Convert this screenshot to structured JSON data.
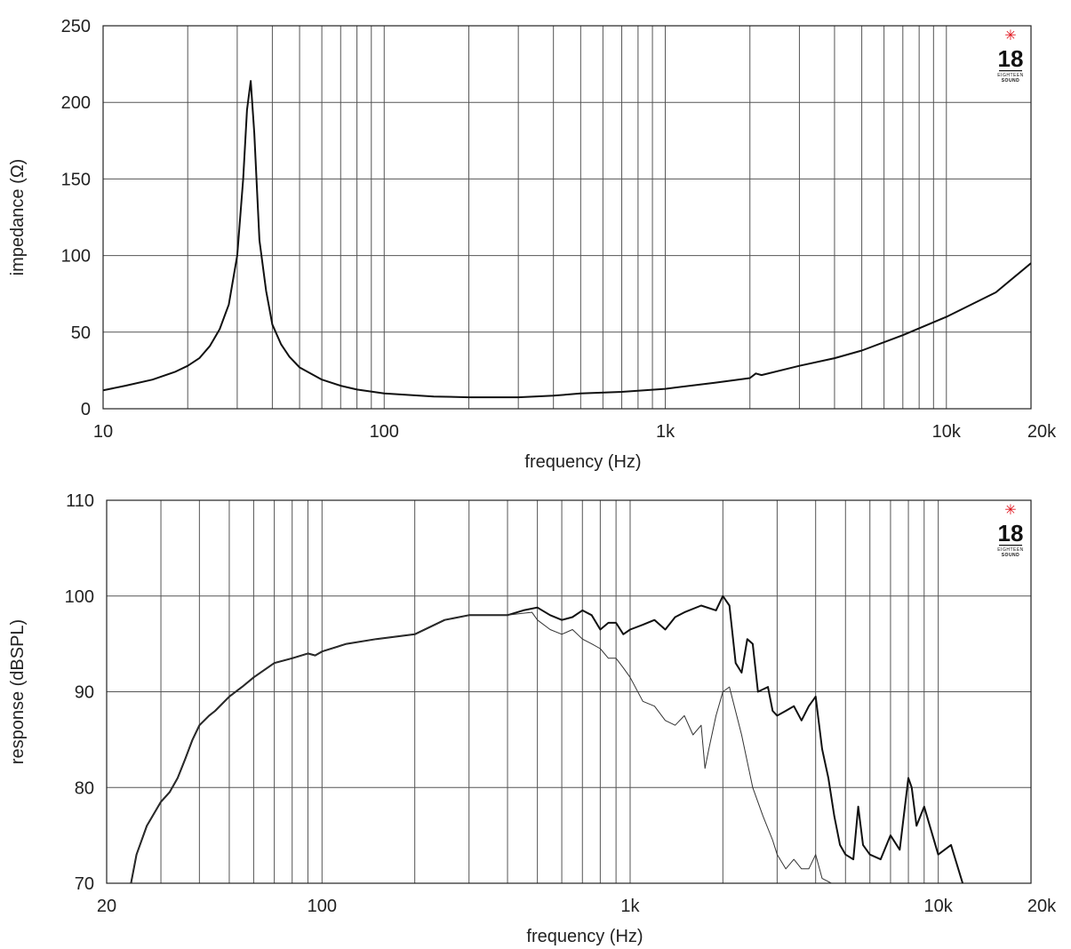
{
  "chart_data": [
    {
      "type": "line",
      "xscale": "log",
      "xlim": [
        10,
        20000
      ],
      "ylim": [
        0,
        250
      ],
      "xlabel": "frequency (Hz)",
      "ylabel": "impedance (Ω)",
      "xtick_values": [
        10,
        100,
        1000,
        10000,
        20000
      ],
      "xtick_labels": [
        "10",
        "100",
        "1k",
        "10k",
        "20k"
      ],
      "ytick_values": [
        0,
        50,
        100,
        150,
        200,
        250
      ],
      "ytick_labels": [
        "0",
        "50",
        "100",
        "150",
        "200",
        "250"
      ],
      "grid": true,
      "logo": {
        "number": "18",
        "sub1": "EIGHTEEN",
        "sub2": "SOUND",
        "star_color": "#e0101a"
      },
      "series": [
        {
          "color": "#111111",
          "width": 2,
          "x": [
            10,
            12,
            15,
            18,
            20,
            22,
            24,
            26,
            28,
            30,
            31.5,
            32.5,
            33.5,
            34.5,
            36,
            38,
            40,
            43,
            46,
            50,
            60,
            70,
            80,
            100,
            150,
            200,
            300,
            400,
            500,
            700,
            1000,
            1500,
            2000,
            2100,
            2200,
            3000,
            4000,
            5000,
            7000,
            10000,
            15000,
            20000
          ],
          "y": [
            12,
            15,
            19,
            24,
            28,
            33,
            41,
            52,
            68,
            100,
            150,
            195,
            214,
            180,
            110,
            77,
            55,
            42,
            34,
            27,
            19,
            15,
            12.5,
            10,
            8,
            7.5,
            7.5,
            8.5,
            10,
            11,
            13,
            17,
            20,
            23,
            22,
            28,
            33,
            38,
            48,
            60,
            76,
            95
          ]
        }
      ]
    },
    {
      "type": "line",
      "xscale": "log",
      "xlim": [
        20,
        20000
      ],
      "ylim": [
        70,
        110
      ],
      "xlabel": "frequency (Hz)",
      "ylabel": "response (dBSPL)",
      "xtick_values": [
        20,
        100,
        1000,
        10000,
        20000
      ],
      "xtick_labels": [
        "20",
        "100",
        "1k",
        "10k",
        "20k"
      ],
      "ytick_values": [
        70,
        80,
        90,
        100,
        110
      ],
      "ytick_labels": [
        "70",
        "80",
        "90",
        "100",
        "110"
      ],
      "grid": true,
      "logo": {
        "number": "18",
        "sub1": "EIGHTEEN",
        "sub2": "SOUND",
        "star_color": "#e0101a"
      },
      "series": [
        {
          "color": "#111111",
          "width": 2,
          "x": [
            24,
            25,
            27,
            30,
            32,
            34,
            36,
            38,
            40,
            43,
            45,
            50,
            55,
            60,
            70,
            80,
            90,
            95,
            100,
            120,
            150,
            200,
            250,
            300,
            350,
            400,
            450,
            500,
            550,
            600,
            650,
            700,
            750,
            800,
            850,
            900,
            950,
            1000,
            1100,
            1200,
            1300,
            1400,
            1500,
            1700,
            1900,
            2000,
            2100,
            2200,
            2300,
            2400,
            2500,
            2600,
            2800,
            2900,
            3000,
            3200,
            3400,
            3600,
            3800,
            4000,
            4200,
            4400,
            4600,
            4800,
            5000,
            5300,
            5500,
            5700,
            6000,
            6500,
            7000,
            7500,
            8000,
            8200,
            8500,
            9000,
            10000,
            11000,
            12000
          ],
          "y": [
            70,
            73,
            76,
            78.5,
            79.5,
            81,
            83,
            85,
            86.5,
            87.5,
            88,
            89.5,
            90.5,
            91.5,
            93,
            93.5,
            94,
            93.8,
            94.2,
            95,
            95.5,
            96,
            97.5,
            98,
            98,
            98,
            98.5,
            98.8,
            98,
            97.5,
            97.8,
            98.5,
            98,
            96.5,
            97.2,
            97.2,
            96,
            96.5,
            97,
            97.5,
            96.5,
            97.8,
            98.3,
            99,
            98.5,
            100,
            99,
            93,
            92,
            95.5,
            95,
            90,
            90.5,
            88,
            87.5,
            88,
            88.5,
            87,
            88.5,
            89.5,
            84,
            81,
            77,
            74,
            73,
            72.5,
            78,
            74,
            73,
            72.5,
            75,
            73.5,
            81,
            80,
            76,
            78,
            73,
            74,
            70
          ]
        },
        {
          "color": "#333333",
          "width": 1,
          "x": [
            24,
            25,
            27,
            30,
            32,
            34,
            36,
            38,
            40,
            43,
            45,
            50,
            55,
            60,
            70,
            80,
            90,
            95,
            100,
            120,
            150,
            200,
            250,
            300,
            350,
            400,
            450,
            480,
            500,
            550,
            600,
            650,
            700,
            750,
            800,
            850,
            900,
            950,
            1000,
            1100,
            1200,
            1300,
            1400,
            1500,
            1600,
            1700,
            1750,
            1800,
            1900,
            2000,
            2100,
            2300,
            2500,
            2700,
            2900,
            3000,
            3200,
            3400,
            3600,
            3800,
            4000,
            4200,
            4500
          ],
          "y": [
            70,
            73,
            76,
            78.5,
            79.5,
            81,
            83,
            85,
            86.5,
            87.5,
            88,
            89.5,
            90.5,
            91.5,
            93,
            93.5,
            94,
            93.8,
            94.2,
            95,
            95.5,
            96,
            97.5,
            98,
            98,
            98,
            98.2,
            98.3,
            97.5,
            96.5,
            96,
            96.5,
            95.5,
            95,
            94.5,
            93.5,
            93.5,
            92.5,
            91.5,
            89,
            88.5,
            87,
            86.5,
            87.5,
            85.5,
            86.5,
            82,
            84,
            87.5,
            90,
            90.5,
            85.5,
            80,
            77,
            74.5,
            73,
            71.5,
            72.5,
            71.5,
            71.5,
            73,
            70.5,
            70
          ]
        }
      ]
    }
  ]
}
